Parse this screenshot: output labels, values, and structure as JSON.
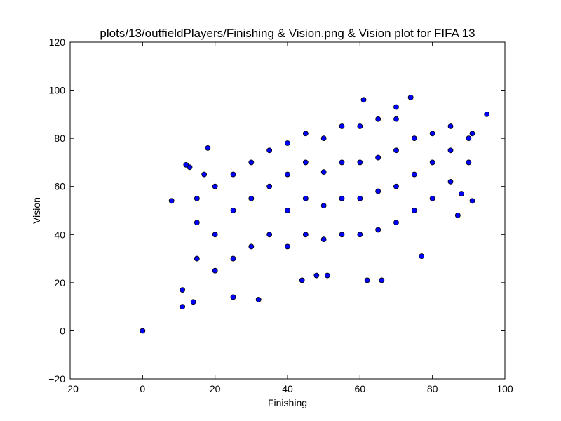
{
  "chart_data": {
    "type": "scatter",
    "title": "plots/13/outfieldPlayers/Finishing & Vision.png & Vision plot for FIFA 13",
    "xlabel": "Finishing",
    "ylabel": "Vision",
    "xlim": [
      -20,
      100
    ],
    "ylim": [
      -20,
      120
    ],
    "xticks": [
      "−20",
      "0",
      "20",
      "40",
      "60",
      "80",
      "100"
    ],
    "yticks": [
      "−20",
      "0",
      "20",
      "40",
      "60",
      "80",
      "100",
      "120"
    ],
    "grid": false,
    "legend": "none",
    "marker_color": "#0000ff",
    "marker_edge": "#000000",
    "series": [
      {
        "points": [
          [
            0,
            0
          ],
          [
            8,
            54
          ],
          [
            11,
            10
          ],
          [
            11,
            17
          ],
          [
            14,
            12
          ],
          [
            13,
            68
          ],
          [
            12,
            69
          ],
          [
            18,
            76
          ],
          [
            17,
            65
          ],
          [
            25,
            14
          ],
          [
            32,
            13
          ],
          [
            44,
            21
          ],
          [
            48,
            23
          ],
          [
            51,
            23
          ],
          [
            62,
            21
          ],
          [
            66,
            21
          ],
          [
            74,
            97
          ],
          [
            70,
            93
          ],
          [
            61,
            96
          ],
          [
            77,
            31
          ],
          [
            87,
            48
          ],
          [
            95,
            90
          ],
          [
            91,
            54
          ],
          [
            88,
            57
          ],
          [
            91,
            82
          ],
          [
            15,
            30
          ],
          [
            15,
            45
          ],
          [
            15,
            55
          ],
          [
            20,
            25
          ],
          [
            20,
            40
          ],
          [
            20,
            60
          ],
          [
            25,
            30
          ],
          [
            25,
            50
          ],
          [
            25,
            65
          ],
          [
            30,
            35
          ],
          [
            30,
            55
          ],
          [
            30,
            70
          ],
          [
            35,
            40
          ],
          [
            35,
            60
          ],
          [
            35,
            75
          ],
          [
            40,
            35
          ],
          [
            40,
            50
          ],
          [
            40,
            65
          ],
          [
            40,
            78
          ],
          [
            45,
            40
          ],
          [
            45,
            55
          ],
          [
            45,
            70
          ],
          [
            45,
            82
          ],
          [
            50,
            38
          ],
          [
            50,
            52
          ],
          [
            50,
            66
          ],
          [
            50,
            80
          ],
          [
            55,
            40
          ],
          [
            55,
            55
          ],
          [
            55,
            70
          ],
          [
            55,
            85
          ],
          [
            60,
            40
          ],
          [
            60,
            55
          ],
          [
            60,
            70
          ],
          [
            60,
            85
          ],
          [
            65,
            42
          ],
          [
            65,
            58
          ],
          [
            65,
            72
          ],
          [
            65,
            88
          ],
          [
            70,
            45
          ],
          [
            70,
            60
          ],
          [
            70,
            75
          ],
          [
            70,
            88
          ],
          [
            75,
            50
          ],
          [
            75,
            65
          ],
          [
            75,
            80
          ],
          [
            80,
            55
          ],
          [
            80,
            70
          ],
          [
            80,
            82
          ],
          [
            85,
            62
          ],
          [
            85,
            75
          ],
          [
            85,
            85
          ],
          [
            90,
            70
          ],
          [
            90,
            80
          ]
        ]
      }
    ]
  }
}
